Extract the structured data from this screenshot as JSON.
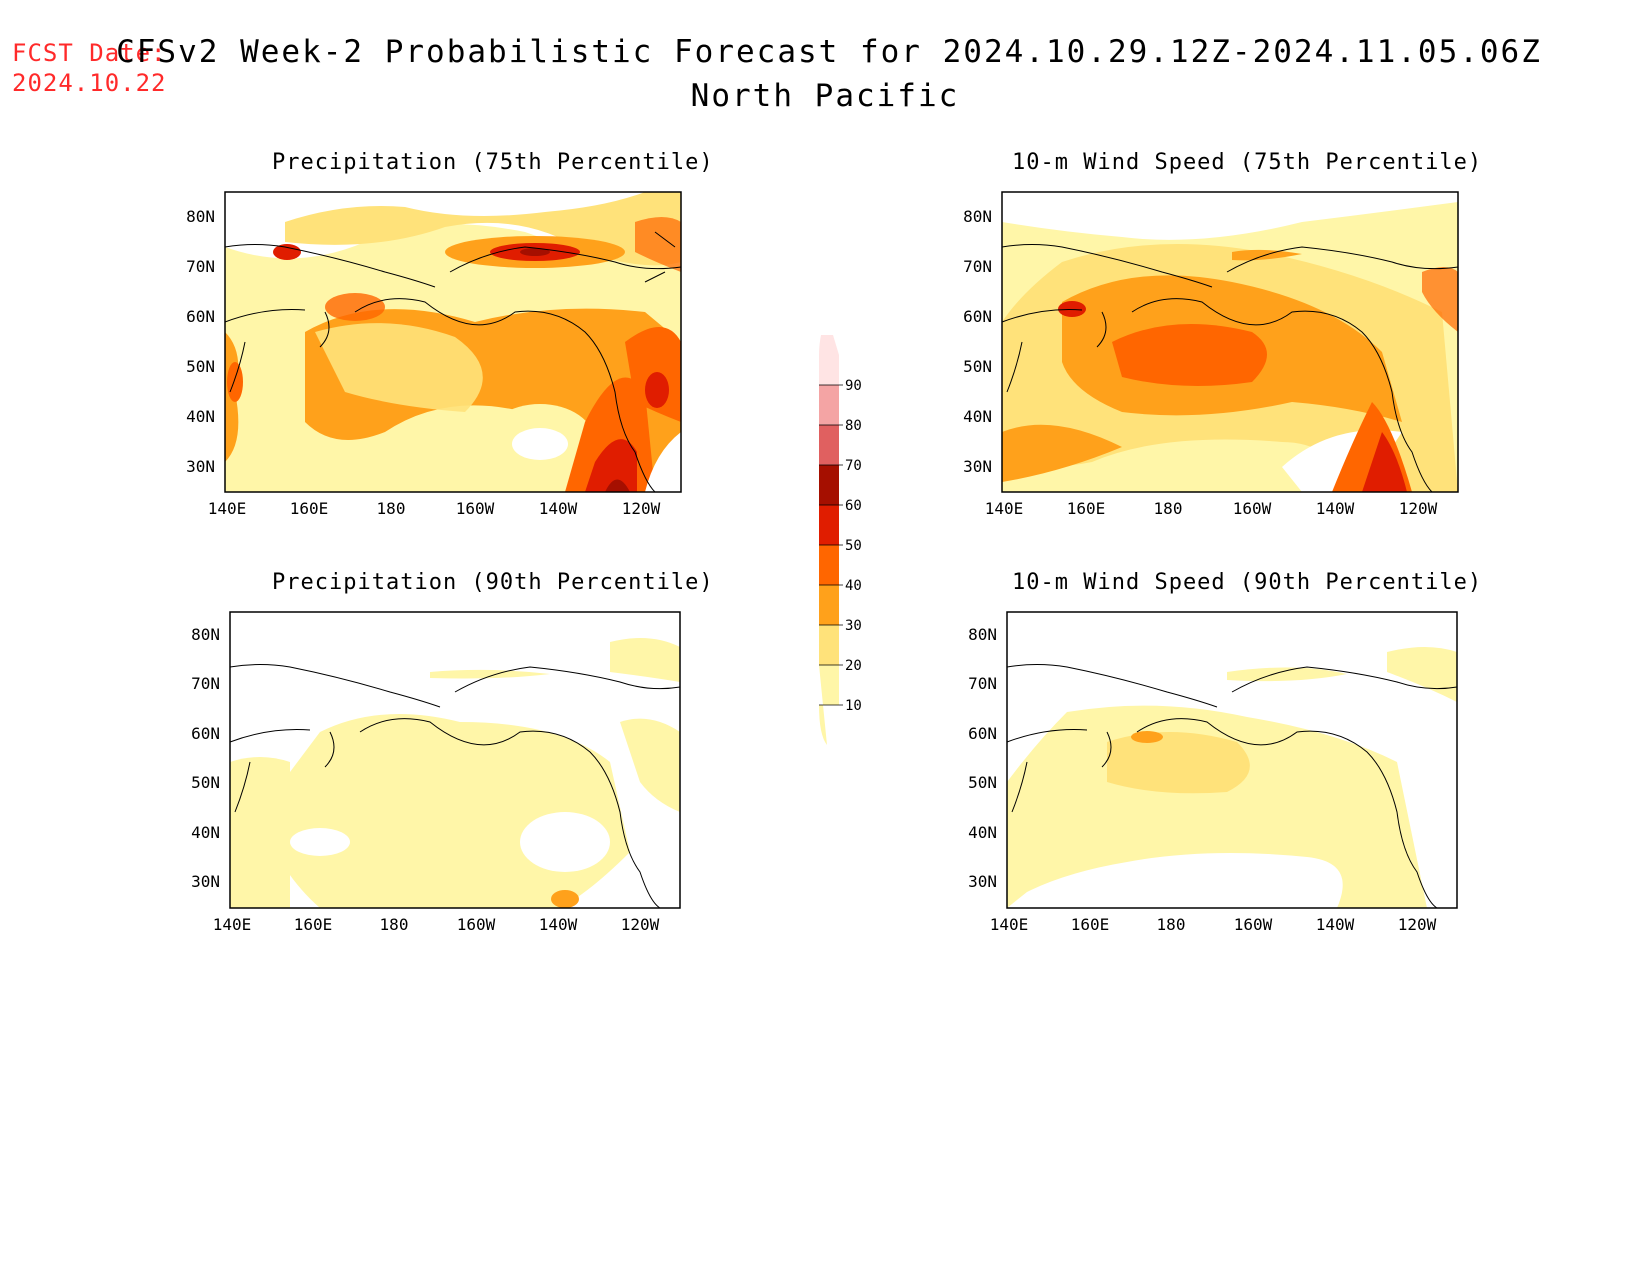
{
  "header": {
    "fcst_label": "FCST Date:",
    "fcst_date": "2024.10.22",
    "title": "CFSv2 Week-2 Probabilistic Forecast for 2024.10.29.12Z-2024.11.05.06Z",
    "subtitle": "North Pacific"
  },
  "axes": {
    "lon_ticks": [
      "140E",
      "160E",
      "180",
      "160W",
      "140W",
      "120W"
    ],
    "lat_ticks": [
      "80N",
      "70N",
      "60N",
      "50N",
      "40N",
      "30N"
    ]
  },
  "panels": [
    {
      "id": "precip75",
      "title": "Precipitation (75th Percentile)"
    },
    {
      "id": "wind75",
      "title": "10-m Wind Speed (75th Percentile)"
    },
    {
      "id": "precip90",
      "title": "Precipitation (90th Percentile)"
    },
    {
      "id": "wind90",
      "title": "10-m Wind Speed (90th Percentile)"
    }
  ],
  "colorbar": {
    "levels": [
      "10",
      "20",
      "30",
      "40",
      "50",
      "60",
      "70",
      "80",
      "90"
    ],
    "colors": [
      "#fff6a8",
      "#ffe27a",
      "#ffa11b",
      "#ff6600",
      "#e01d00",
      "#a50f00",
      "#e06060",
      "#f4a4a4",
      "#ffe4e4"
    ]
  }
}
